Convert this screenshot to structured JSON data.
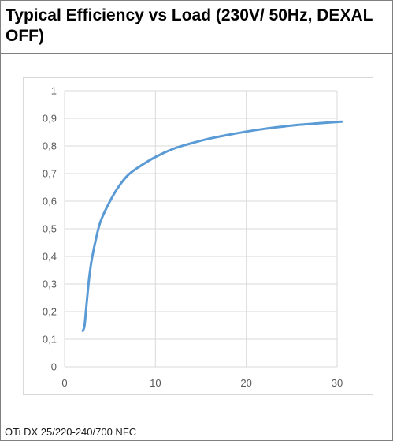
{
  "header": {
    "title": "Typical Efficiency vs Load (230V/ 50Hz, DEXAL OFF)"
  },
  "footer": {
    "product": "OTi DX 25/220-240/700 NFC"
  },
  "chart_data": {
    "type": "line",
    "title": "",
    "xlabel": "",
    "ylabel": "",
    "xlim": [
      0,
      30
    ],
    "ylim": [
      0,
      1
    ],
    "xticks": [
      0,
      10,
      20,
      30
    ],
    "yticks": [
      0,
      0.1,
      0.2,
      0.3,
      0.4,
      0.5,
      0.6,
      0.7,
      0.8,
      0.9,
      1
    ],
    "xtick_labels": [
      "0",
      "10",
      "20",
      "30"
    ],
    "ytick_labels": [
      "0",
      "0,1",
      "0,2",
      "0,3",
      "0,4",
      "0,5",
      "0,6",
      "0,7",
      "0,8",
      "0,9",
      "1"
    ],
    "grid": true,
    "legend": "none",
    "line_color": "#5b9bd5",
    "grid_color": "#d9d9d9",
    "series": [
      {
        "x": [
          2.0,
          2.2,
          2.4,
          2.7,
          3.0,
          3.5,
          4.0,
          5.0,
          6.0,
          7.0,
          8.0,
          10.0,
          12.0,
          14.0,
          16.0,
          18.0,
          20.0,
          22.0,
          24.0,
          26.0,
          28.0,
          30.5
        ],
        "values": [
          0.13,
          0.15,
          0.22,
          0.32,
          0.39,
          0.47,
          0.53,
          0.6,
          0.655,
          0.695,
          0.72,
          0.76,
          0.79,
          0.81,
          0.827,
          0.84,
          0.852,
          0.862,
          0.87,
          0.877,
          0.882,
          0.888
        ]
      }
    ]
  }
}
